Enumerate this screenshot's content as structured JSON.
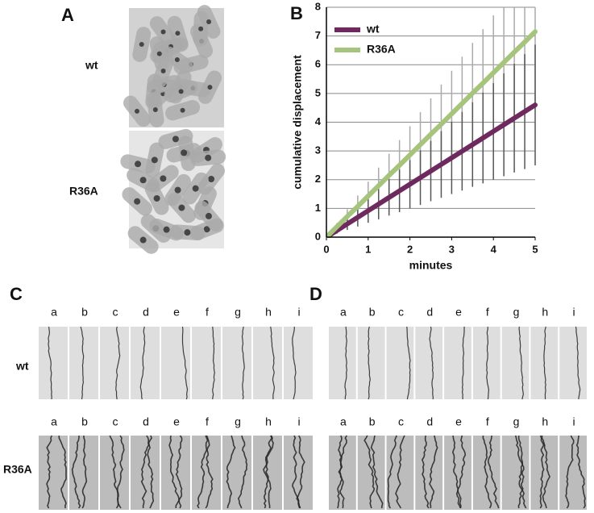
{
  "panels": {
    "A": "A",
    "B": "B",
    "C": "C",
    "D": "D"
  },
  "panel_a": {
    "rows": [
      "wt",
      "R36A"
    ]
  },
  "kymographs": {
    "rows": [
      "wt",
      "R36A"
    ],
    "columns": [
      "a",
      "b",
      "c",
      "d",
      "e",
      "f",
      "g",
      "h",
      "i"
    ]
  },
  "chart_data": {
    "type": "line",
    "xlabel": "minutes",
    "ylabel": "cumulative displacement",
    "x": [
      0,
      0.25,
      0.5,
      0.75,
      1,
      1.25,
      1.5,
      1.75,
      2,
      2.25,
      2.5,
      2.75,
      3,
      3.25,
      3.5,
      3.75,
      4,
      4.25,
      4.5,
      4.75,
      5
    ],
    "series": [
      {
        "name": "wt",
        "color": "#6e2a5e",
        "error_color": "#555555",
        "values": [
          0,
          0.23,
          0.46,
          0.69,
          0.92,
          1.15,
          1.38,
          1.61,
          1.84,
          2.07,
          2.3,
          2.53,
          2.76,
          2.99,
          3.22,
          3.45,
          3.68,
          3.91,
          4.14,
          4.37,
          4.6
        ],
        "errors": [
          0,
          0.11,
          0.21,
          0.32,
          0.42,
          0.53,
          0.63,
          0.74,
          0.84,
          0.95,
          1.05,
          1.16,
          1.26,
          1.37,
          1.47,
          1.58,
          1.68,
          1.79,
          1.89,
          2,
          2.1
        ]
      },
      {
        "name": "R36A",
        "color": "#a6c47c",
        "error_color": "#aaaaaa",
        "values": [
          0,
          0.36,
          0.72,
          1.07,
          1.43,
          1.79,
          2.15,
          2.5,
          2.86,
          3.22,
          3.58,
          3.93,
          4.29,
          4.65,
          5.01,
          5.36,
          5.72,
          6.08,
          6.44,
          6.79,
          7.15
        ],
        "errors": [
          0,
          0.13,
          0.25,
          0.38,
          0.5,
          0.63,
          0.75,
          0.88,
          1,
          1.13,
          1.25,
          1.38,
          1.5,
          1.63,
          1.75,
          1.88,
          2,
          2.13,
          2.25,
          2.38,
          2.5
        ]
      }
    ],
    "xlim": [
      0,
      5
    ],
    "ylim": [
      0,
      8
    ],
    "xticks": [
      0,
      1,
      2,
      3,
      4,
      5
    ],
    "yticks": [
      0,
      1,
      2,
      3,
      4,
      5,
      6,
      7,
      8
    ],
    "grid": true,
    "legend": "upper left"
  }
}
